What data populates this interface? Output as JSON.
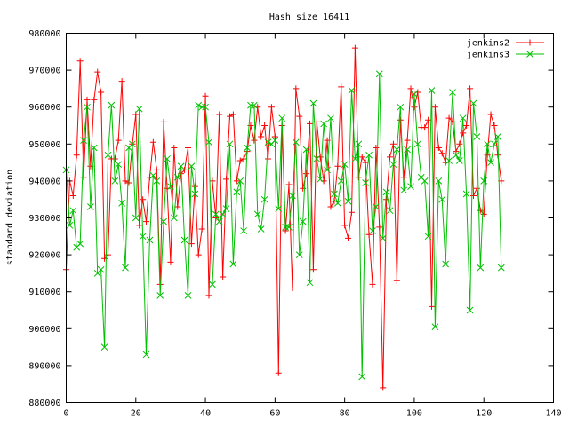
{
  "chart_data": {
    "type": "line",
    "title": "Hash size 16411",
    "xlabel": "",
    "ylabel": "standard deviation",
    "xlim": [
      0,
      140
    ],
    "ylim": [
      880000,
      980000
    ],
    "xticks": [
      0,
      20,
      40,
      60,
      80,
      100,
      120,
      140
    ],
    "yticks": [
      880000,
      890000,
      900000,
      910000,
      920000,
      930000,
      940000,
      950000,
      960000,
      970000,
      980000
    ],
    "grid": false,
    "legend_position": "top-right",
    "series": [
      {
        "name": "jenkins2",
        "color": "#ff0000",
        "marker": "plus",
        "x": [
          0,
          1,
          2,
          3,
          4,
          5,
          6,
          7,
          8,
          9,
          10,
          11,
          12,
          13,
          14,
          15,
          16,
          17,
          18,
          19,
          20,
          21,
          22,
          23,
          24,
          25,
          26,
          27,
          28,
          29,
          30,
          31,
          32,
          33,
          34,
          35,
          36,
          37,
          38,
          39,
          40,
          41,
          42,
          43,
          44,
          45,
          46,
          47,
          48,
          49,
          50,
          51,
          52,
          53,
          54,
          55,
          56,
          57,
          58,
          59,
          60,
          61,
          62,
          63,
          64,
          65,
          66,
          67,
          68,
          69,
          70,
          71,
          72,
          73,
          74,
          75,
          76,
          77,
          78,
          79,
          80,
          81,
          82,
          83,
          84,
          85,
          86,
          87,
          88,
          89,
          90,
          91,
          92,
          93,
          94,
          95,
          96,
          97,
          98,
          99,
          100,
          101,
          102,
          103,
          104,
          105,
          106,
          107,
          108,
          109,
          110,
          111,
          112,
          113,
          114,
          115,
          116,
          117,
          118,
          119,
          120,
          121,
          122,
          123,
          124,
          125
        ],
        "values": [
          916000,
          940000,
          936000,
          947000,
          972500,
          941000,
          962000,
          944000,
          962000,
          969500,
          964000,
          919000,
          920000,
          946000,
          946000,
          951000,
          967000,
          940000,
          939500,
          950000,
          958000,
          928000,
          935000,
          929000,
          941000,
          950500,
          943000,
          912000,
          956000,
          938000,
          918000,
          949000,
          933000,
          942000,
          943000,
          949000,
          923000,
          938500,
          920000,
          927000,
          963000,
          909000,
          940000,
          930000,
          958000,
          914000,
          940500,
          957500,
          958000,
          940000,
          945500,
          946000,
          948000,
          955000,
          951000,
          960000,
          952000,
          955000,
          946000,
          960000,
          952000,
          888000,
          955000,
          926500,
          939000,
          911000,
          965000,
          957500,
          938000,
          942000,
          955500,
          916000,
          956000,
          946500,
          940000,
          951000,
          933000,
          934500,
          944000,
          965500,
          928000,
          924500,
          931500,
          976000,
          941000,
          946500,
          945000,
          925500,
          912000,
          949000,
          927500,
          884000,
          935000,
          946500,
          950000,
          913000,
          956500,
          941000,
          951000,
          965000,
          960000,
          964000,
          954500,
          954500,
          956500,
          906000,
          960000,
          949000,
          947500,
          945000,
          957000,
          956000,
          948000,
          950000,
          953000,
          955000,
          965000,
          936000,
          938000,
          932000,
          931000,
          947000,
          958000,
          955000,
          947000,
          940000
        ]
      },
      {
        "name": "jenkins3",
        "color": "#00c000",
        "marker": "cross",
        "x": [
          0,
          1,
          2,
          3,
          4,
          5,
          6,
          7,
          8,
          9,
          10,
          11,
          12,
          13,
          14,
          15,
          16,
          17,
          18,
          19,
          20,
          21,
          22,
          23,
          24,
          25,
          26,
          27,
          28,
          29,
          30,
          31,
          32,
          33,
          34,
          35,
          36,
          37,
          38,
          39,
          40,
          41,
          42,
          43,
          44,
          45,
          46,
          47,
          48,
          49,
          50,
          51,
          52,
          53,
          54,
          55,
          56,
          57,
          58,
          59,
          60,
          61,
          62,
          63,
          64,
          65,
          66,
          67,
          68,
          69,
          70,
          71,
          72,
          73,
          74,
          75,
          76,
          77,
          78,
          79,
          80,
          81,
          82,
          83,
          84,
          85,
          86,
          87,
          88,
          89,
          90,
          91,
          92,
          93,
          94,
          95,
          96,
          97,
          98,
          99,
          100,
          101,
          102,
          103,
          104,
          105,
          106,
          107,
          108,
          109,
          110,
          111,
          112,
          113,
          114,
          115,
          116,
          117,
          118,
          119,
          120,
          121,
          122,
          123,
          124,
          125
        ],
        "values": [
          943000,
          928000,
          932000,
          922000,
          923000,
          951000,
          960000,
          933000,
          949000,
          915000,
          916000,
          895000,
          947000,
          960500,
          940000,
          944500,
          934000,
          916500,
          949000,
          950000,
          930000,
          959500,
          925000,
          893000,
          924000,
          941500,
          940000,
          909000,
          929000,
          946000,
          938500,
          930000,
          941000,
          944000,
          924000,
          909000,
          944000,
          936500,
          960500,
          960000,
          960000,
          950500,
          912000,
          931000,
          929000,
          931000,
          932500,
          950000,
          917500,
          937000,
          940000,
          926500,
          949000,
          960500,
          960500,
          931000,
          927000,
          935000,
          950500,
          950000,
          951000,
          932500,
          957000,
          927500,
          927500,
          936000,
          950500,
          920000,
          929000,
          948500,
          912500,
          961000,
          946000,
          940500,
          955500,
          943000,
          957000,
          936500,
          934000,
          940000,
          944500,
          934500,
          964500,
          946000,
          950000,
          887000,
          939500,
          947000,
          926500,
          933000,
          969000,
          924500,
          937000,
          932000,
          944500,
          948500,
          960000,
          937500,
          948500,
          938500,
          963500,
          950000,
          941000,
          940000,
          925000,
          964500,
          900500,
          940000,
          935000,
          917500,
          945500,
          964000,
          947000,
          945500,
          957000,
          936500,
          905000,
          961000,
          952000,
          916500,
          940000,
          950000,
          945000,
          950000,
          952000,
          916500
        ]
      }
    ]
  }
}
